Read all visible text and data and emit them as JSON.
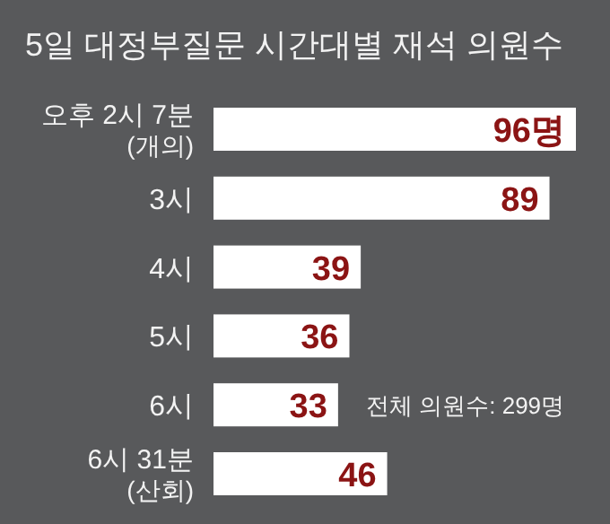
{
  "chart_data": {
    "type": "bar",
    "orientation": "horizontal",
    "title": "5일 대정부질문 시간대별 재석 의원수",
    "categories": [
      "오후 2시 7분\n(개의)",
      "3시",
      "4시",
      "5시",
      "6시",
      "6시 31분\n(산회)"
    ],
    "values": [
      96,
      89,
      39,
      36,
      33,
      46
    ],
    "value_labels": [
      "96명",
      "89",
      "39",
      "36",
      "33",
      "46"
    ],
    "color": "#ffffff",
    "annotations": [
      "전체 의원수: 299명"
    ]
  }
}
